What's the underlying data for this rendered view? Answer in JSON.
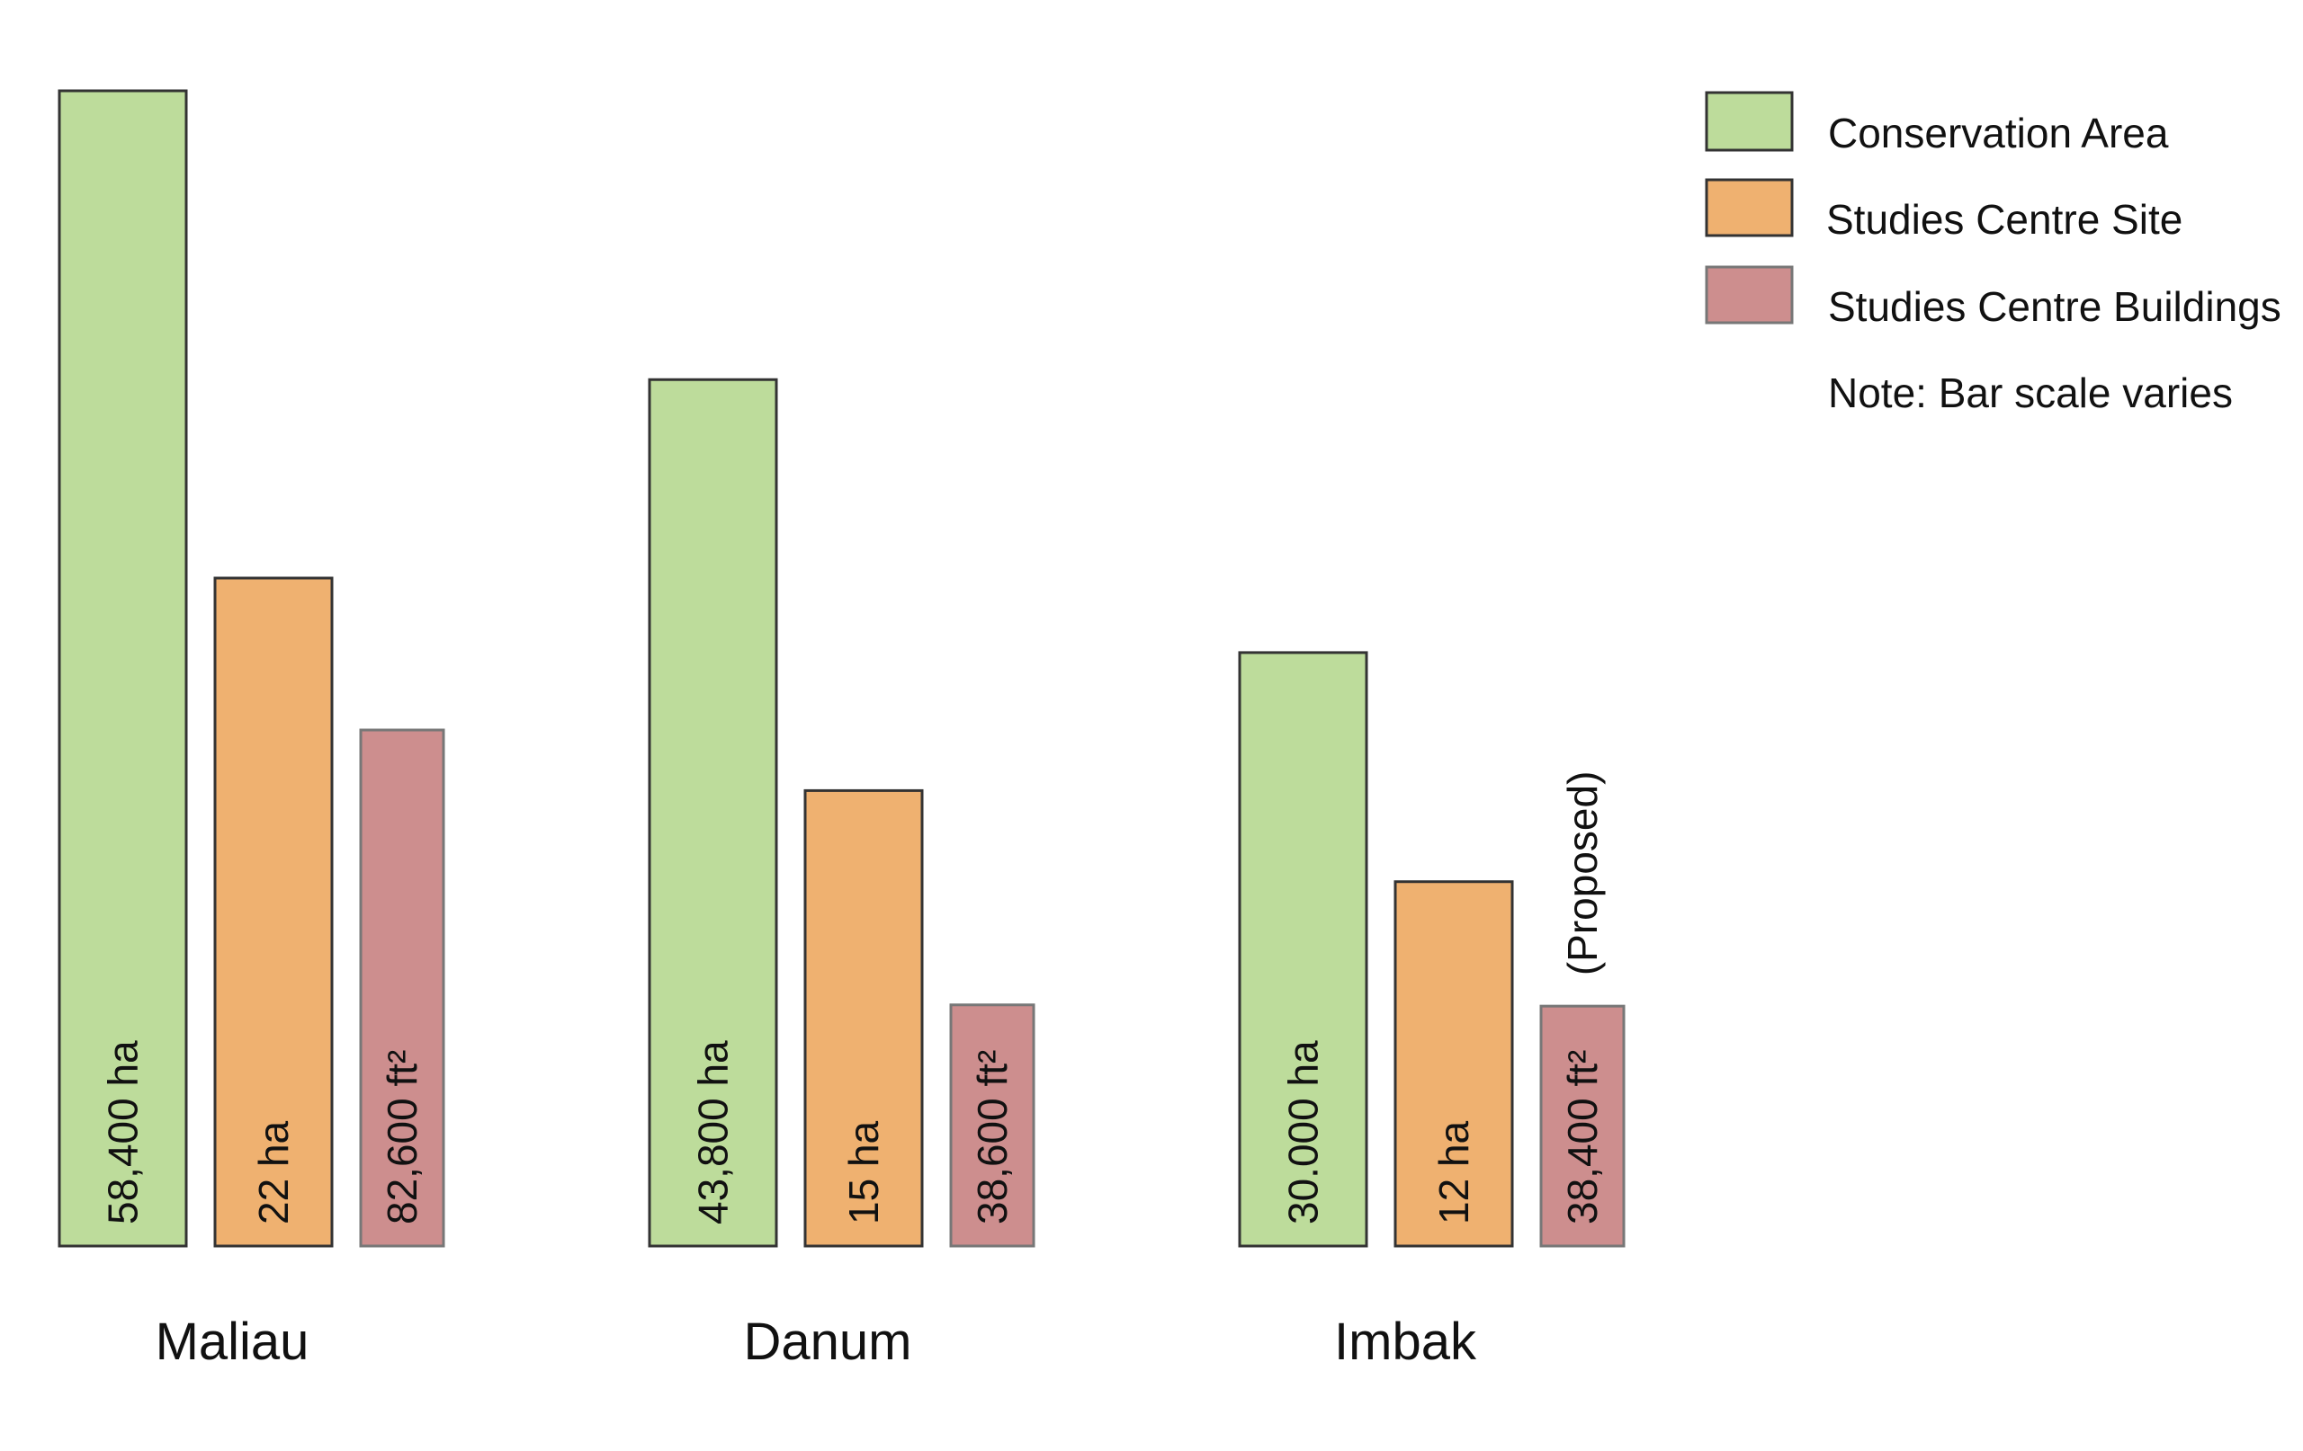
{
  "chart_data": {
    "type": "bar",
    "categories": [
      "Maliau",
      "Danum",
      "Imbak"
    ],
    "series": [
      {
        "name": "Conservation Area",
        "color": "#bddc9b",
        "values": [
          58400,
          43800,
          30000
        ],
        "labels": [
          "58,400 ha",
          "43,800 ha",
          "30.000 ha"
        ]
      },
      {
        "name": "Studies Centre Site",
        "color": "#efb170",
        "values": [
          22,
          15,
          12
        ],
        "labels": [
          "22 ha",
          "15 ha",
          "12 ha"
        ]
      },
      {
        "name": "Studies Centre Buildings",
        "color": "#cd8e8e",
        "values": [
          82600,
          38600,
          38400
        ],
        "labels": [
          "82,600 ft²",
          "38,600 ft²",
          "38,400 ft²"
        ]
      }
    ],
    "annotations": [
      {
        "text": "(Proposed)",
        "category": "Imbak",
        "series": "Studies Centre Buildings"
      }
    ],
    "legend_note": "Note: Bar scale varies",
    "legend_position": "top-right",
    "grid": false
  }
}
